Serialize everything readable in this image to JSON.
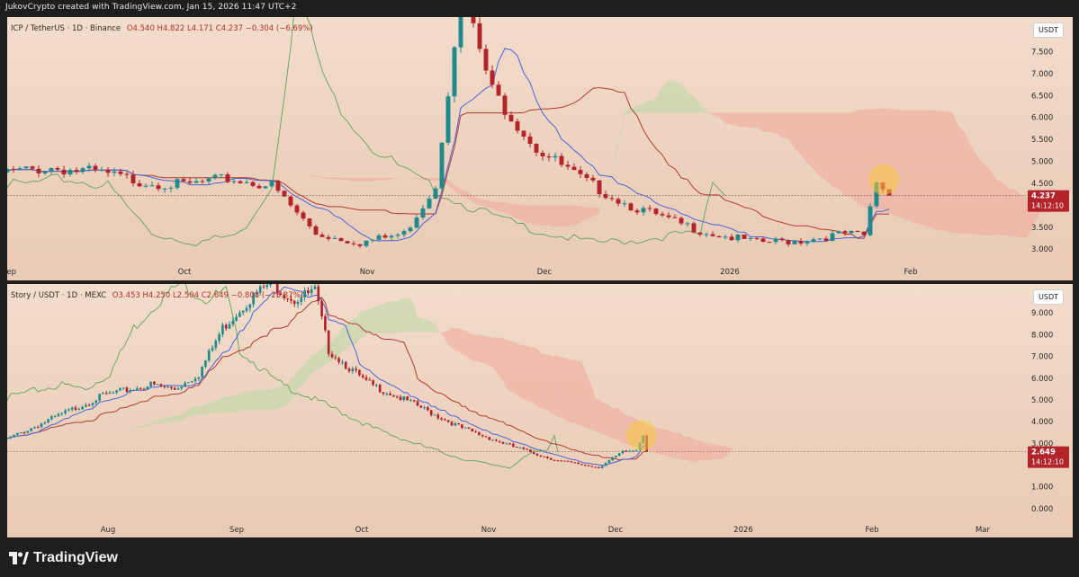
{
  "header": {
    "caption": "JukovCrypto created with TradingView.com, Jan 15, 2026 11:47 UTC+2"
  },
  "footer": {
    "logo_text": "TradingView"
  },
  "colors": {
    "up": "#1f8a8a",
    "down": "#b3232a",
    "tenkan": "#4a64d8",
    "kijun": "#b23a32",
    "chikou": "#5fa35f",
    "cloud_bull": "#b9d8a6",
    "cloud_bear": "#f0a79b",
    "highlight": "#f5c842"
  },
  "panels": [
    {
      "id": "icp",
      "header": "ICP / TetherUS · 1D · Binance",
      "ohlc": "O4.540  H4.822  L4.171  C4.237  −0.304 (−6.69%)",
      "currency_label": "USDT",
      "last_price": "4.237",
      "countdown": "14:12:10",
      "x_ticks": [
        "Sep",
        "Oct",
        "Nov",
        "Dec",
        "2026",
        "Feb"
      ],
      "y_ticks": [
        "7.500",
        "7.000",
        "6.500",
        "6.000",
        "5.500",
        "5.000",
        "4.500",
        "3.500",
        "3.000"
      ]
    },
    {
      "id": "story",
      "header": "Story / USDT · 1D · MEXC",
      "ohlc": "O3.453  H4.250  L2.504  C2.649  −0.808 (−23.37%)",
      "currency_label": "USDT",
      "last_price": "2.649",
      "countdown": "14:12:10",
      "x_ticks": [
        "Aug",
        "Sep",
        "Oct",
        "Nov",
        "Dec",
        "2026",
        "Feb",
        "Mar"
      ],
      "y_ticks": [
        "9.000",
        "8.000",
        "7.000",
        "6.000",
        "5.000",
        "4.000",
        "3.000",
        "1.000",
        "0.000"
      ]
    }
  ],
  "chart_data": [
    {
      "type": "line",
      "title": "ICP / TetherUS · 1D · Binance",
      "series": [
        {
          "x": [
            "2025-08-28",
            "2025-09-04",
            "2025-09-11",
            "2025-09-18",
            "2025-09-25",
            "2025-10-02",
            "2025-10-09",
            "2025-10-16",
            "2025-10-23",
            "2025-10-30",
            "2025-11-04",
            "2025-11-08",
            "2025-11-13",
            "2025-11-20",
            "2025-11-27",
            "2025-12-04",
            "2025-12-11",
            "2025-12-18",
            "2025-12-25",
            "2026-01-01",
            "2026-01-08",
            "2026-01-11",
            "2026-01-13",
            "2026-01-15"
          ],
          "values": [
            4.75,
            4.85,
            4.75,
            4.55,
            4.45,
            4.6,
            4.45,
            3.35,
            3.15,
            3.35,
            4.45,
            8.9,
            6.6,
            5.3,
            4.6,
            4.05,
            3.65,
            3.35,
            3.15,
            3.2,
            3.35,
            3.3,
            4.55,
            4.237
          ]
        }
      ],
      "ylim": [
        2.8,
        8.0
      ]
    },
    {
      "type": "line",
      "title": "Story / USDT · 1D · MEXC",
      "series": [
        {
          "x": [
            "2025-07-12",
            "2025-07-26",
            "2025-08-09",
            "2025-08-23",
            "2025-08-30",
            "2025-09-06",
            "2025-09-13",
            "2025-09-20",
            "2025-09-27",
            "2025-10-04",
            "2025-10-10",
            "2025-10-14",
            "2025-10-25",
            "2025-11-08",
            "2025-11-22",
            "2025-12-06",
            "2025-12-20",
            "2026-01-01",
            "2026-01-08",
            "2026-01-12",
            "2026-01-14",
            "2026-01-15"
          ],
          "values": [
            3.2,
            4.2,
            5.2,
            5.7,
            5.5,
            6.2,
            8.3,
            9.5,
            10.4,
            9.6,
            10.0,
            7.3,
            5.8,
            4.8,
            3.7,
            2.9,
            2.2,
            1.9,
            2.6,
            2.7,
            3.45,
            2.649
          ]
        }
      ],
      "ylim": [
        -0.5,
        10.0
      ]
    }
  ]
}
